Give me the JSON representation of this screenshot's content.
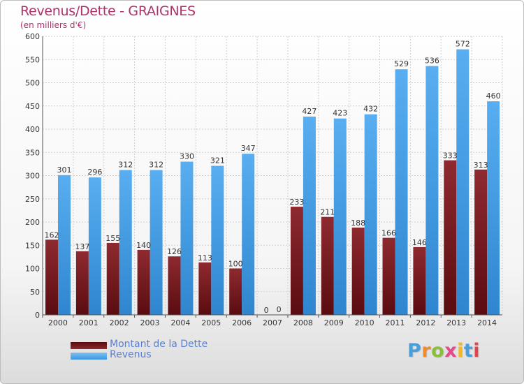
{
  "title": "Revenus/Dette - GRAIGNES",
  "subtitle": "(en milliers d'€)",
  "colors": {
    "dette": "#7a1d22",
    "revenus": "#4aa1e6",
    "title": "#b0306a",
    "legend_text": "#5a7fd0"
  },
  "legend": {
    "dette_label": "Montant de la Dette",
    "revenus_label": "Revenus"
  },
  "logo": {
    "letters": [
      "P",
      "r",
      "o",
      "x",
      "i",
      "t",
      "i"
    ],
    "colors": [
      "#4a9fd8",
      "#f08b2a",
      "#8bbf3b",
      "#e24a8c",
      "#f3b829",
      "#4a9fd8",
      "#e2434b"
    ]
  },
  "chart_data": {
    "type": "bar",
    "categories": [
      "2000",
      "2001",
      "2002",
      "2003",
      "2004",
      "2005",
      "2006",
      "2007",
      "2008",
      "2009",
      "2010",
      "2011",
      "2012",
      "2013",
      "2014"
    ],
    "series": [
      {
        "name": "Montant de la Dette",
        "values": [
          162,
          137,
          155,
          140,
          126,
          113,
          100,
          0,
          233,
          211,
          188,
          166,
          146,
          333,
          313
        ]
      },
      {
        "name": "Revenus",
        "values": [
          301,
          296,
          312,
          312,
          330,
          321,
          347,
          0,
          427,
          423,
          432,
          529,
          536,
          572,
          460
        ]
      }
    ],
    "y_ticks": [
      0,
      50,
      100,
      150,
      200,
      250,
      300,
      350,
      400,
      450,
      500,
      550,
      600
    ],
    "ylim": [
      0,
      600
    ],
    "grid": true,
    "legend_position": "bottom-left"
  }
}
